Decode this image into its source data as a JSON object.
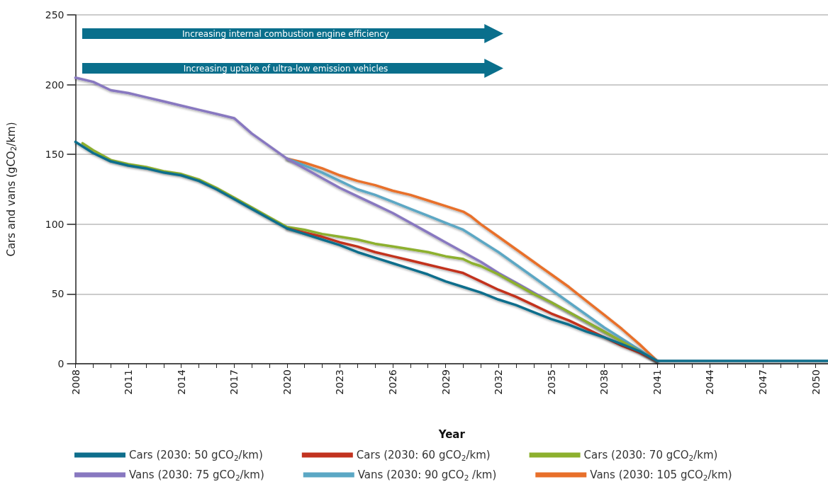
{
  "chart_data": {
    "type": "line",
    "xlabel": "Year",
    "ylabel": "Cars and vans (gCO$_{2}$/km)",
    "annotations": [
      "Increasing internal combustion engine efficiency",
      "Increasing uptake of ultra-low emission vehicles"
    ],
    "xlim": [
      2008,
      2050.7
    ],
    "ylim": [
      0,
      250
    ],
    "yticks": [
      0,
      50,
      100,
      150,
      200,
      250
    ],
    "xticks": [
      2008,
      {
        "value": 2009,
        "label": null
      },
      {
        "value": 2010,
        "label": null
      },
      2011,
      {
        "value": 2012,
        "label": null
      },
      {
        "value": 2013,
        "label": null
      },
      2014,
      {
        "value": 2015,
        "label": null
      },
      {
        "value": 2016,
        "label": null
      },
      2017,
      {
        "value": 2018,
        "label": null
      },
      {
        "value": 2019,
        "label": null
      },
      2020,
      {
        "value": 2021,
        "label": null
      },
      {
        "value": 2022,
        "label": null
      },
      2023,
      {
        "value": 2024,
        "label": null
      },
      {
        "value": 2025,
        "label": null
      },
      2026,
      {
        "value": 2027,
        "label": null
      },
      {
        "value": 2028,
        "label": null
      },
      2029,
      {
        "value": 2030,
        "label": null
      },
      {
        "value": 2031,
        "label": null
      },
      2032,
      {
        "value": 2033,
        "label": null
      },
      {
        "value": 2034,
        "label": null
      },
      2035,
      {
        "value": 2036,
        "label": null
      },
      {
        "value": 2037,
        "label": null
      },
      2038,
      {
        "value": 2039,
        "label": null
      },
      {
        "value": 2040,
        "label": null
      },
      2041,
      {
        "value": 2042,
        "label": null
      },
      {
        "value": 2043,
        "label": null
      },
      2044,
      {
        "value": 2045,
        "label": null
      },
      {
        "value": 2046,
        "label": null
      },
      2047,
      {
        "value": 2048,
        "label": null
      },
      {
        "value": 2049,
        "label": null
      },
      2050
    ],
    "grid": "y",
    "legend": "bottom",
    "marker": "none",
    "line_style": "solid",
    "series": [
      {
        "name": "Cars (2030: 50 gCO$_{2}$/km)",
        "color": "#0e6e8c",
        "x": [
          2008,
          2009,
          2010,
          2011,
          2012,
          2013,
          2014,
          2015,
          2016,
          2017,
          2018,
          2019,
          2020,
          2021,
          2022,
          2023,
          2024,
          2025,
          2026,
          2027,
          2028,
          2029,
          2030,
          2031,
          2032,
          2033,
          2034,
          2035,
          2036,
          2037,
          2038,
          2039,
          2040,
          2041,
          2050.7
        ],
        "values": [
          159,
          151,
          145,
          142,
          140,
          137,
          135,
          131,
          125,
          118,
          111,
          104,
          97,
          93,
          89,
          85,
          80,
          76,
          72,
          68,
          64,
          59,
          55,
          51,
          46,
          42,
          37,
          32,
          28,
          23,
          19,
          14,
          9,
          2,
          2
        ]
      },
      {
        "name": "Cars (2030: 60 gCO$_{2}$/km)",
        "color": "#c2321f",
        "x": [
          2020,
          2021,
          2022,
          2023,
          2024,
          2025,
          2026,
          2027,
          2028,
          2029,
          2030,
          2030.5,
          2031,
          2032,
          2033,
          2034,
          2035,
          2036,
          2037,
          2038,
          2039,
          2040,
          2041
        ],
        "values": [
          97,
          94,
          91,
          87,
          84,
          80,
          77,
          74,
          71,
          68,
          65,
          62,
          59,
          53,
          48,
          42,
          36,
          31,
          25,
          19,
          13,
          8,
          2
        ]
      },
      {
        "name": "Cars (2030: 70 gCO$_{2}$/km)",
        "color": "#8db02e",
        "x": [
          2008.4,
          2009,
          2010,
          2011,
          2012,
          2013,
          2014,
          2015,
          2016,
          2017,
          2018,
          2019,
          2020,
          2021,
          2022,
          2023,
          2024,
          2025,
          2026,
          2027,
          2028,
          2029,
          2030,
          2030.5,
          2031,
          2032,
          2033,
          2034,
          2035,
          2036,
          2037,
          2038,
          2039,
          2040,
          2041
        ],
        "values": [
          158,
          153,
          146,
          143,
          141,
          138,
          136,
          132,
          126,
          119,
          112,
          105,
          98,
          96,
          93,
          91,
          89,
          86,
          84,
          82,
          80,
          77,
          75,
          72,
          70,
          64,
          57,
          50,
          44,
          37,
          30,
          23,
          16,
          9,
          2
        ]
      },
      {
        "name": "Vans (2030: 75 gCO$_{2}$/km)",
        "color": "#8878c0",
        "x": [
          2008,
          2009,
          2010,
          2011,
          2012,
          2013,
          2014,
          2015,
          2016,
          2017,
          2018,
          2019,
          2020,
          2021,
          2022,
          2023,
          2024,
          2025,
          2026,
          2027,
          2028,
          2029,
          2030,
          2031,
          2032,
          2033,
          2034,
          2035,
          2036,
          2037,
          2038,
          2039,
          2040,
          2041
        ],
        "values": [
          205,
          202,
          196,
          194,
          191,
          188,
          185,
          182,
          179,
          176,
          165,
          156,
          147,
          140,
          133,
          126,
          120,
          114,
          108,
          101,
          94,
          87,
          80,
          73,
          65,
          58,
          51,
          44,
          37,
          30,
          23,
          16,
          9,
          2
        ]
      },
      {
        "name": "Vans (2030: 90 gCO$_{2}$ /km)",
        "color": "#5ba7c4",
        "x": [
          2020,
          2021,
          2022,
          2023,
          2024,
          2025,
          2026,
          2027,
          2028,
          2029,
          2030,
          2030.5,
          2031,
          2032,
          2033,
          2034,
          2035,
          2036,
          2037,
          2038,
          2039,
          2040,
          2041
        ],
        "values": [
          147,
          142,
          137,
          131,
          125,
          121,
          116,
          111,
          106,
          101,
          96,
          92,
          88,
          80,
          71,
          62,
          53,
          44,
          35,
          26,
          18,
          10,
          2
        ]
      },
      {
        "name": "Vans (2030: 105 gCO$_{2}$/km)",
        "color": "#e8702a",
        "x": [
          2020,
          2021,
          2022,
          2023,
          2024,
          2025,
          2026,
          2027,
          2028,
          2029,
          2030,
          2030.4,
          2031,
          2032,
          2033,
          2034,
          2035,
          2036,
          2037,
          2038,
          2039,
          2040,
          2041
        ],
        "values": [
          147,
          144,
          140,
          135,
          131,
          128,
          124,
          121,
          117,
          113,
          109,
          106,
          100,
          91,
          82,
          73,
          64,
          55,
          45,
          35,
          25,
          14,
          2
        ]
      }
    ]
  }
}
